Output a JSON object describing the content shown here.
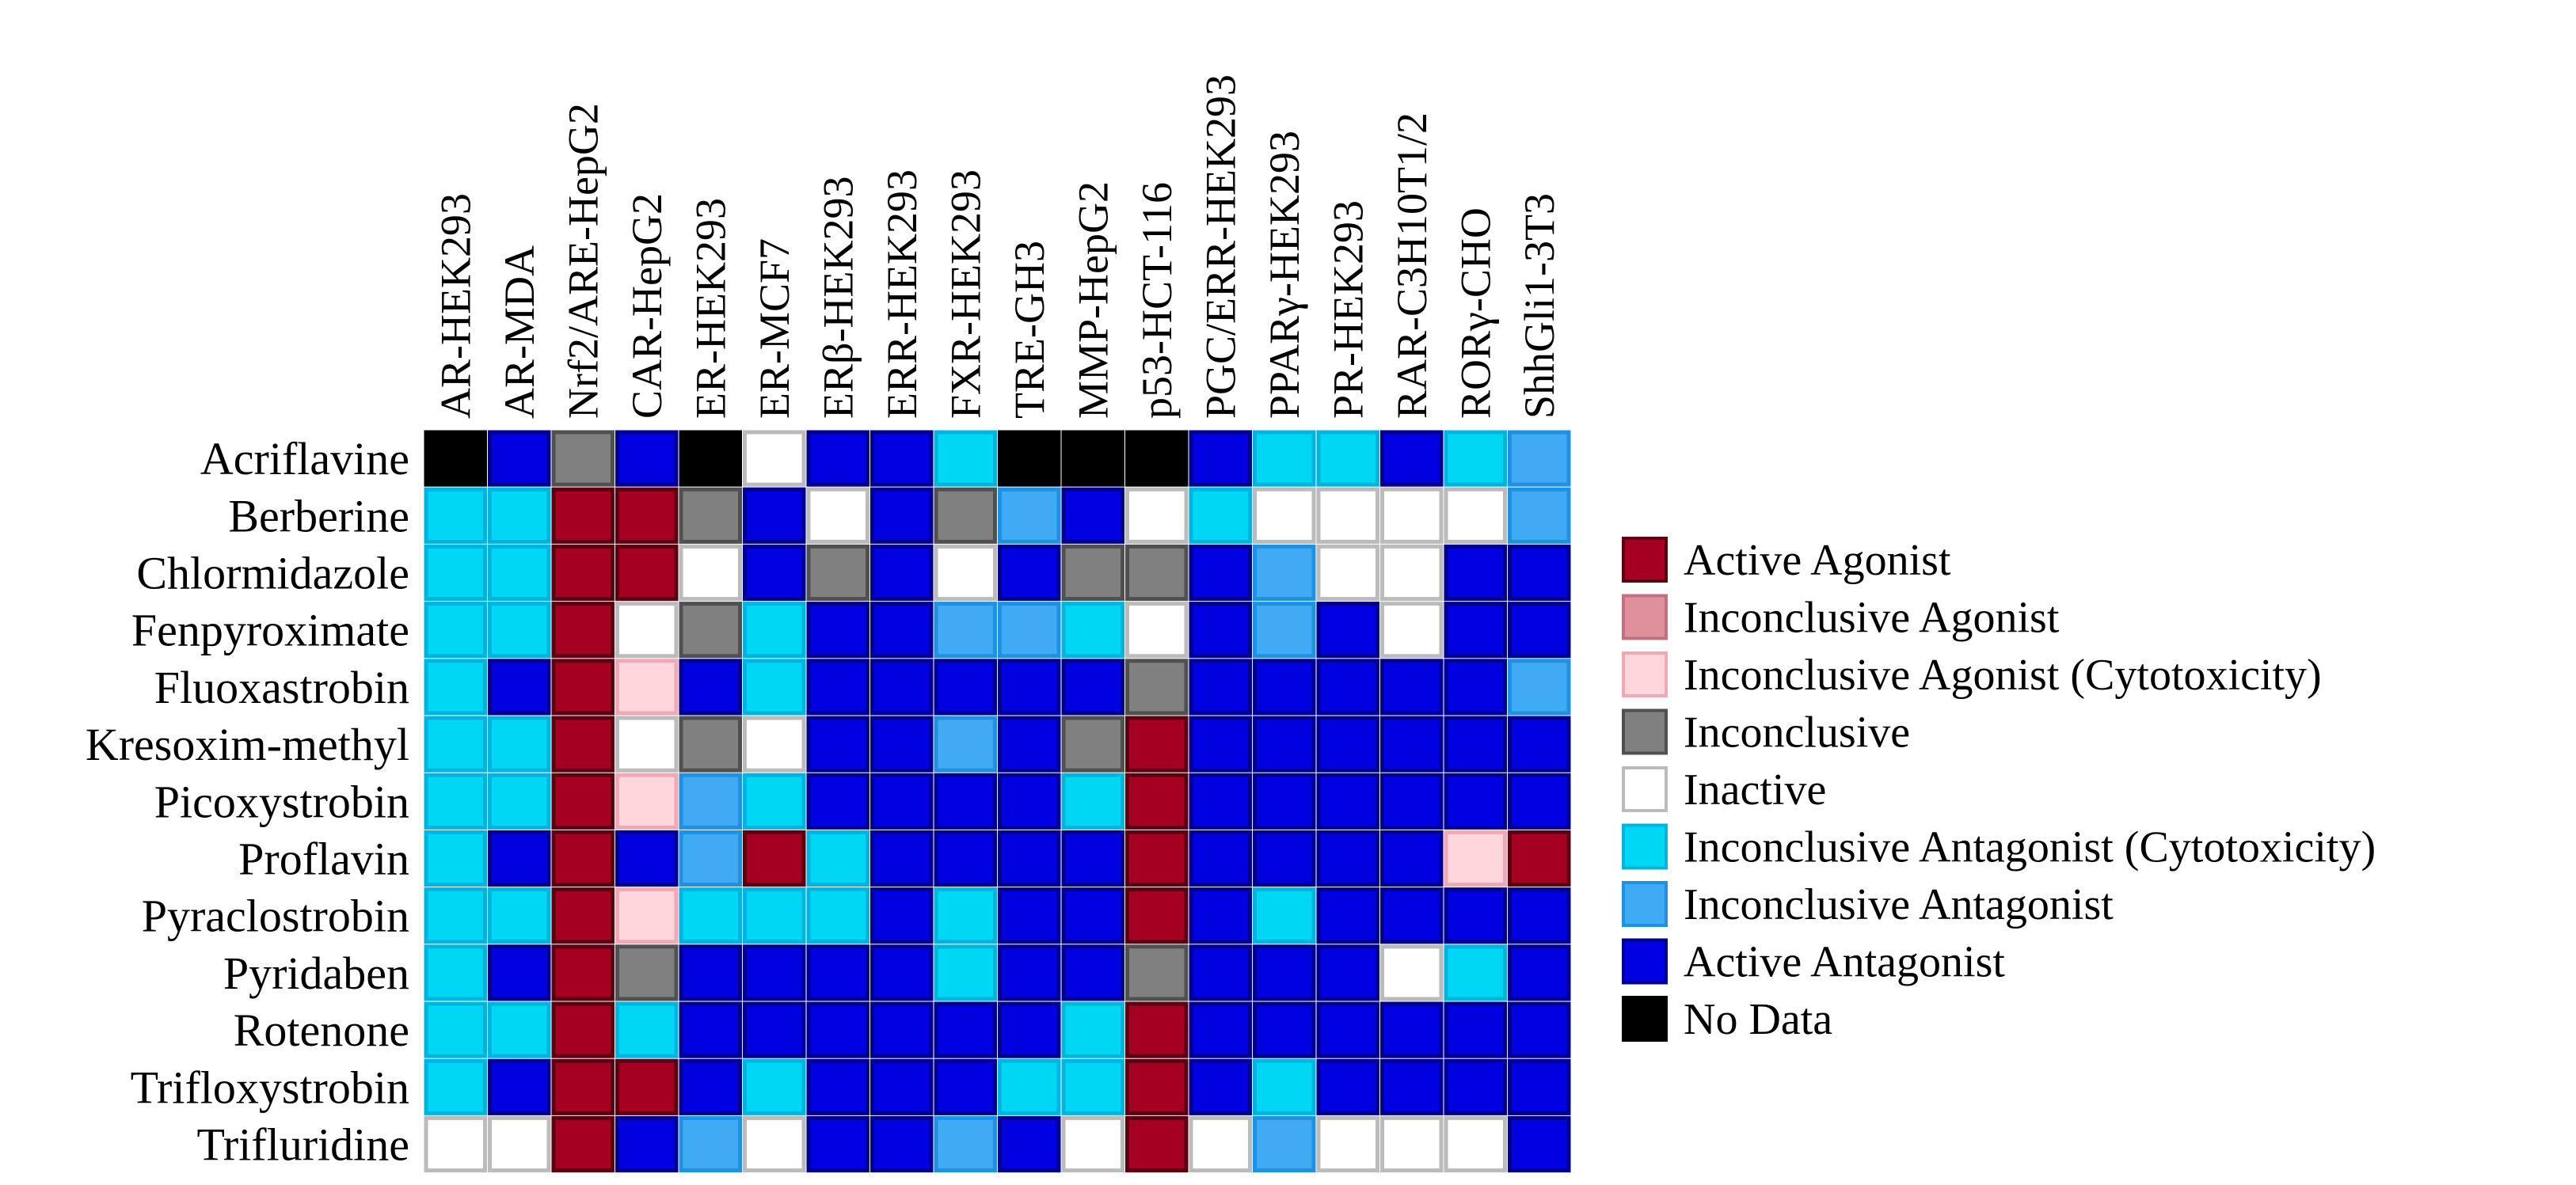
{
  "chart_data": {
    "type": "heatmap",
    "title": "",
    "columns": [
      "AR-HEK293",
      "AR-MDA",
      "Nrf2/ARE-HepG2",
      "CAR-HepG2",
      "ER-HEK293",
      "ER-MCF7",
      "ERβ-HEK293",
      "ERR-HEK293",
      "FXR-HEK293",
      "TRE-GH3",
      "MMP-HepG2",
      "p53-HCT-116",
      "PGC/ERR-HEK293",
      "PPARγ-HEK293",
      "PR-HEK293",
      "RAR-C3H10T1/2",
      "RORγ-CHO",
      "ShhGli1-3T3"
    ],
    "rows": [
      "Acriflavine",
      "Berberine",
      "Chlormidazole",
      "Fenpyroximate",
      "Fluoxastrobin",
      "Kresoxim-methyl",
      "Picoxystrobin",
      "Proflavin",
      "Pyraclostrobin",
      "Pyridaben",
      "Rotenone",
      "Trifloxystrobin",
      "Trifluridine"
    ],
    "categories": [
      {
        "code": "AA",
        "label": "Active Agonist",
        "fill": "#A50021",
        "border": "#5a0010"
      },
      {
        "code": "IA",
        "label": "Inconclusive Agonist",
        "fill": "#E0909A",
        "border": "#c07080"
      },
      {
        "code": "IAC",
        "label": "Inconclusive Agonist (Cytotoxicity)",
        "fill": "#FFD6DC",
        "border": "#F0A8B4"
      },
      {
        "code": "IN",
        "label": "Inconclusive",
        "fill": "#808080",
        "border": "#505050"
      },
      {
        "code": "NA",
        "label": "Inactive",
        "fill": "#FFFFFF",
        "border": "#BBBBBB"
      },
      {
        "code": "IANC",
        "label": "Inconclusive Antagonist (Cytotoxicity)",
        "fill": "#00D7F5",
        "border": "#00B4E0"
      },
      {
        "code": "IANT",
        "label": "Inconclusive Antagonist",
        "fill": "#40AAF5",
        "border": "#2090E0"
      },
      {
        "code": "AN",
        "label": "Active Antagonist",
        "fill": "#0000E0",
        "border": "#000090"
      },
      {
        "code": "ND",
        "label": "No Data",
        "fill": "#000000",
        "border": "#000000"
      }
    ],
    "values": [
      [
        "ND",
        "AN",
        "IN",
        "AN",
        "ND",
        "NA",
        "AN",
        "AN",
        "IANC",
        "ND",
        "ND",
        "ND",
        "AN",
        "IANC",
        "IANC",
        "AN",
        "IANC",
        "IANT"
      ],
      [
        "IANC",
        "IANC",
        "AA",
        "AA",
        "IN",
        "AN",
        "NA",
        "AN",
        "IN",
        "IANT",
        "AN",
        "NA",
        "IANC",
        "NA",
        "NA",
        "NA",
        "NA",
        "IANT"
      ],
      [
        "IANC",
        "IANC",
        "AA",
        "AA",
        "NA",
        "AN",
        "IN",
        "AN",
        "NA",
        "AN",
        "IN",
        "IN",
        "AN",
        "IANT",
        "NA",
        "NA",
        "AN",
        "AN"
      ],
      [
        "IANC",
        "IANC",
        "AA",
        "NA",
        "IN",
        "IANC",
        "AN",
        "AN",
        "IANT",
        "IANT",
        "IANC",
        "NA",
        "AN",
        "IANT",
        "AN",
        "NA",
        "AN",
        "AN"
      ],
      [
        "IANC",
        "AN",
        "AA",
        "IAC",
        "AN",
        "IANC",
        "AN",
        "AN",
        "AN",
        "AN",
        "AN",
        "IN",
        "AN",
        "AN",
        "AN",
        "AN",
        "AN",
        "IANT"
      ],
      [
        "IANC",
        "IANC",
        "AA",
        "NA",
        "IN",
        "NA",
        "AN",
        "AN",
        "IANT",
        "AN",
        "IN",
        "AA",
        "AN",
        "AN",
        "AN",
        "AN",
        "AN",
        "AN"
      ],
      [
        "IANC",
        "IANC",
        "AA",
        "IAC",
        "IANT",
        "IANC",
        "AN",
        "AN",
        "AN",
        "AN",
        "IANC",
        "AA",
        "AN",
        "AN",
        "AN",
        "AN",
        "AN",
        "AN"
      ],
      [
        "IANC",
        "AN",
        "AA",
        "AN",
        "IANT",
        "AA",
        "IANC",
        "AN",
        "AN",
        "AN",
        "AN",
        "AA",
        "AN",
        "AN",
        "AN",
        "AN",
        "IAC",
        "AA"
      ],
      [
        "IANC",
        "IANC",
        "AA",
        "IAC",
        "IANC",
        "IANC",
        "IANC",
        "AN",
        "IANC",
        "AN",
        "AN",
        "AA",
        "AN",
        "IANC",
        "AN",
        "AN",
        "AN",
        "AN"
      ],
      [
        "IANC",
        "AN",
        "AA",
        "IN",
        "AN",
        "AN",
        "AN",
        "AN",
        "IANC",
        "AN",
        "AN",
        "IN",
        "AN",
        "AN",
        "AN",
        "NA",
        "IANC",
        "AN"
      ],
      [
        "IANC",
        "IANC",
        "AA",
        "IANC",
        "AN",
        "AN",
        "AN",
        "AN",
        "AN",
        "AN",
        "IANC",
        "AA",
        "AN",
        "AN",
        "AN",
        "AN",
        "AN",
        "AN"
      ],
      [
        "IANC",
        "AN",
        "AA",
        "AA",
        "AN",
        "IANC",
        "AN",
        "AN",
        "AN",
        "IANC",
        "IANC",
        "AA",
        "AN",
        "IANC",
        "AN",
        "AN",
        "AN",
        "AN"
      ],
      [
        "NA",
        "NA",
        "AA",
        "AN",
        "IANT",
        "NA",
        "AN",
        "AN",
        "IANT",
        "AN",
        "NA",
        "AA",
        "NA",
        "IANT",
        "NA",
        "NA",
        "NA",
        "AN"
      ]
    ],
    "legend_position": "right"
  }
}
